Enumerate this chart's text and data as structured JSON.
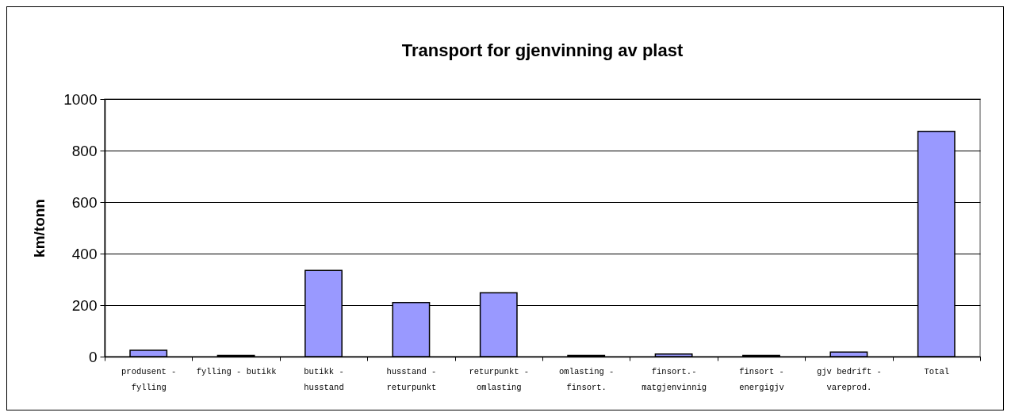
{
  "chart_data": {
    "type": "bar",
    "title": "Transport for gjenvinning av plast",
    "ylabel": "km/tonn",
    "categories": [
      "produsent - fylling",
      "fylling - butikk",
      "butikk - husstand",
      "husstand - returpunkt",
      "returpunkt - omlasting",
      "omlasting - finsort.",
      "finsort.- matgjenvinnig",
      "finsort - energigjv",
      "gjv bedrift - vareprod.",
      "Total"
    ],
    "values": [
      25,
      5,
      335,
      210,
      248,
      5,
      10,
      5,
      18,
      875
    ],
    "color": "#9999ff",
    "ylim": [
      0,
      1000
    ],
    "yticks": [
      0,
      200,
      400,
      600,
      800,
      1000
    ],
    "grid": "y"
  }
}
